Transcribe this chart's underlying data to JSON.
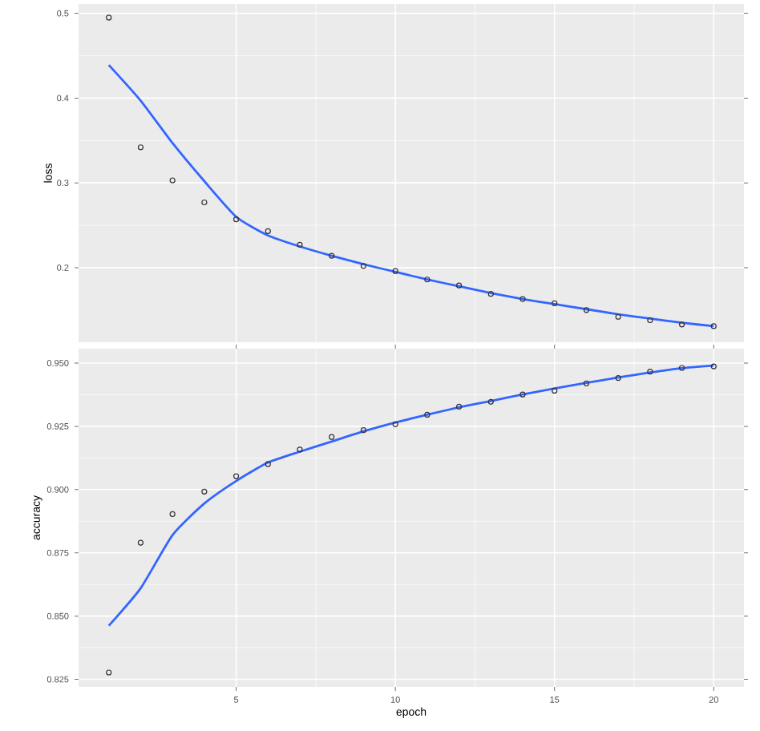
{
  "chart_data": [
    {
      "type": "scatter",
      "ylabel": "loss",
      "x": [
        1,
        2,
        3,
        4,
        5,
        6,
        7,
        8,
        9,
        10,
        11,
        12,
        13,
        14,
        15,
        16,
        17,
        18,
        19,
        20
      ],
      "xlim": [
        0.05,
        20.95
      ],
      "xticks": [
        5,
        10,
        15,
        20
      ],
      "ylim": [
        0.112,
        0.511
      ],
      "yticks": [
        0.2,
        0.3,
        0.4,
        0.5
      ],
      "grid": true,
      "tick_labels": "y",
      "series": [
        {
          "marker": "circle",
          "color": "#333333",
          "values": [
            0.495,
            0.342,
            0.303,
            0.277,
            0.257,
            0.243,
            0.227,
            0.214,
            0.202,
            0.196,
            0.186,
            0.179,
            0.169,
            0.163,
            0.158,
            0.15,
            0.142,
            0.138,
            0.133,
            0.131
          ]
        },
        {
          "type": "line",
          "color": "#3366ff",
          "values": [
            0.439,
            0.397,
            0.347,
            0.302,
            0.26,
            0.238,
            0.225,
            0.214,
            0.204,
            0.195,
            0.186,
            0.178,
            0.17,
            0.163,
            0.157,
            0.151,
            0.145,
            0.14,
            0.135,
            0.131
          ]
        }
      ]
    },
    {
      "type": "scatter",
      "xlabel": "epoch",
      "ylabel": "accuracy",
      "x": [
        1,
        2,
        3,
        4,
        5,
        6,
        7,
        8,
        9,
        10,
        11,
        12,
        13,
        14,
        15,
        16,
        17,
        18,
        19,
        20
      ],
      "xlim": [
        0.05,
        20.95
      ],
      "xticks": [
        5,
        10,
        15,
        20
      ],
      "ylim": [
        0.822,
        0.9557
      ],
      "yticks": [
        {
          "value": 0.825,
          "label": "0.825"
        },
        {
          "value": 0.85,
          "label": "0.850"
        },
        {
          "value": 0.875,
          "label": "0.875"
        },
        {
          "value": 0.9,
          "label": "0.900"
        },
        {
          "value": 0.925,
          "label": "0.925"
        },
        {
          "value": 0.95,
          "label": "0.950"
        }
      ],
      "grid": true,
      "series": [
        {
          "marker": "circle",
          "color": "#333333",
          "values": [
            0.8277,
            0.879,
            0.8903,
            0.8992,
            0.9053,
            0.9101,
            0.9158,
            0.9208,
            0.9235,
            0.9258,
            0.9296,
            0.9328,
            0.9347,
            0.9376,
            0.9391,
            0.942,
            0.9441,
            0.9466,
            0.9481,
            0.9487
          ]
        },
        {
          "type": "line",
          "color": "#3366ff",
          "values": [
            0.8462,
            0.861,
            0.882,
            0.8945,
            0.9034,
            0.9107,
            0.915,
            0.919,
            0.923,
            0.9265,
            0.9296,
            0.9325,
            0.935,
            0.9376,
            0.94,
            0.9422,
            0.9443,
            0.9463,
            0.948,
            0.949
          ]
        }
      ]
    }
  ]
}
